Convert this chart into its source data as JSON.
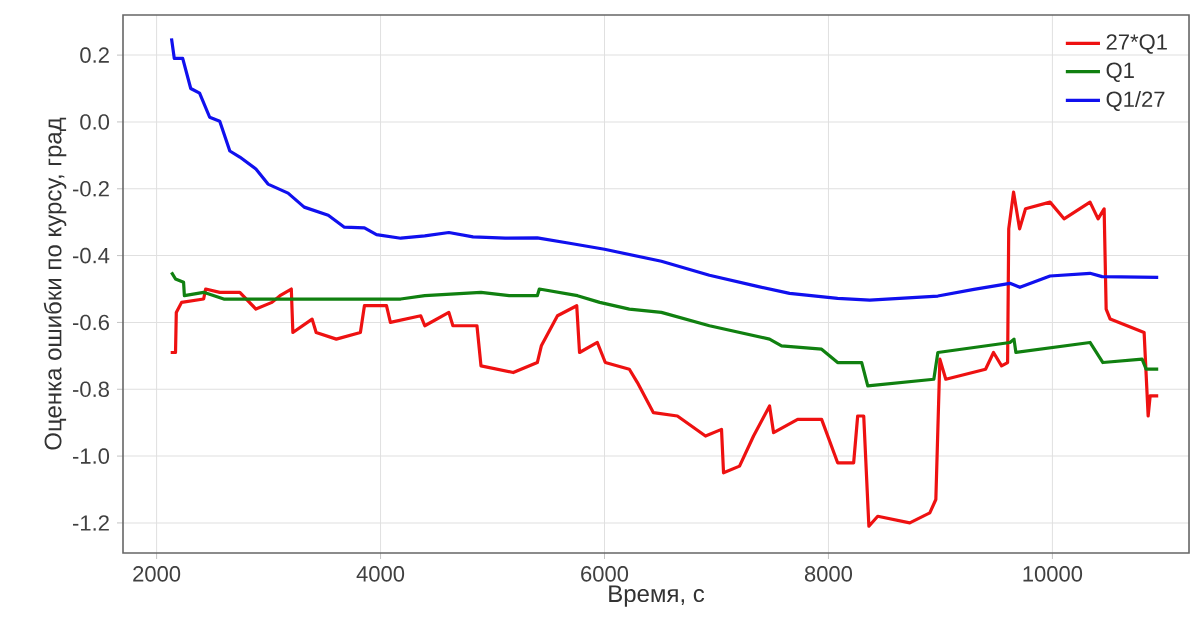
{
  "chart_data": {
    "type": "line",
    "xlabel": "Время, с",
    "ylabel": "Оценка ошибки по курсу, град",
    "xlim": [
      1700,
      11220
    ],
    "ylim": [
      -1.29,
      0.32
    ],
    "xticks": [
      2000,
      4000,
      6000,
      8000,
      10000
    ],
    "yticks": [
      0.2,
      {
        "value": 0,
        "label": "0.0"
      },
      -0.2,
      -0.4,
      -0.6,
      -0.8,
      {
        "value": -1,
        "label": "-1.0"
      },
      -1.2
    ],
    "grid": true,
    "legend": "top right",
    "line_style": "solid",
    "marker": "none",
    "series": [
      {
        "name": "27*Q1",
        "color": "#ee1111",
        "x": [
          2126,
          2169,
          2176,
          2223,
          2420,
          2438,
          2564,
          2743,
          2887,
          3030,
          3102,
          3203,
          3217,
          3389,
          3425,
          3605,
          3820,
          3856,
          4053,
          4088,
          4359,
          4395,
          4610,
          4646,
          4861,
          4897,
          5185,
          5400,
          5436,
          5580,
          5752,
          5777,
          5936,
          6007,
          6222,
          6294,
          6437,
          6651,
          6902,
          7045,
          7063,
          7206,
          7331,
          7474,
          7510,
          7725,
          7939,
          8082,
          8225,
          8261,
          8315,
          8361,
          8440,
          8726,
          8905,
          8959,
          8995,
          9048,
          9403,
          9474,
          9546,
          9600,
          9610,
          9653,
          9707,
          9760,
          9979,
          10104,
          10336,
          10408,
          10462,
          10480,
          10516,
          10819,
          10855,
          10873,
          10945
        ],
        "values": [
          -0.69,
          -0.69,
          -0.57,
          -0.54,
          -0.53,
          -0.5,
          -0.51,
          -0.51,
          -0.56,
          -0.54,
          -0.52,
          -0.5,
          -0.63,
          -0.59,
          -0.63,
          -0.65,
          -0.63,
          -0.55,
          -0.55,
          -0.6,
          -0.58,
          -0.61,
          -0.57,
          -0.61,
          -0.61,
          -0.73,
          -0.75,
          -0.72,
          -0.67,
          -0.58,
          -0.55,
          -0.69,
          -0.66,
          -0.72,
          -0.74,
          -0.78,
          -0.87,
          -0.88,
          -0.94,
          -0.92,
          -1.05,
          -1.03,
          -0.94,
          -0.85,
          -0.93,
          -0.89,
          -0.89,
          -1.02,
          -1.02,
          -0.88,
          -0.88,
          -1.21,
          -1.18,
          -1.2,
          -1.17,
          -1.13,
          -0.71,
          -0.77,
          -0.74,
          -0.69,
          -0.73,
          -0.72,
          -0.32,
          -0.21,
          -0.32,
          -0.26,
          -0.24,
          -0.29,
          -0.24,
          -0.29,
          -0.26,
          -0.56,
          -0.59,
          -0.63,
          -0.88,
          -0.82,
          -0.82
        ]
      },
      {
        "name": "Q1",
        "color": "#108010",
        "x": [
          2133,
          2169,
          2241,
          2248,
          2420,
          2600,
          2887,
          3174,
          3569,
          3999,
          4180,
          4395,
          4897,
          5149,
          5400,
          5418,
          5759,
          5957,
          6222,
          6508,
          6937,
          7474,
          7581,
          7939,
          8082,
          8297,
          8351,
          8941,
          8977,
          9621,
          9657,
          9674,
          10336,
          10451,
          10801,
          10837,
          10945
        ],
        "values": [
          -0.45,
          -0.47,
          -0.48,
          -0.52,
          -0.51,
          -0.53,
          -0.53,
          -0.53,
          -0.53,
          -0.53,
          -0.53,
          -0.52,
          -0.51,
          -0.52,
          -0.52,
          -0.5,
          -0.52,
          -0.54,
          -0.56,
          -0.57,
          -0.61,
          -0.65,
          -0.67,
          -0.68,
          -0.72,
          -0.72,
          -0.79,
          -0.77,
          -0.69,
          -0.66,
          -0.65,
          -0.69,
          -0.66,
          -0.72,
          -0.71,
          -0.74,
          -0.74
        ]
      },
      {
        "name": "Q1/27",
        "color": "#1010ee",
        "x": [
          2133,
          2158,
          2233,
          2305,
          2384,
          2474,
          2564,
          2654,
          2743,
          2887,
          2995,
          3174,
          3318,
          3533,
          3677,
          3856,
          3964,
          4180,
          4395,
          4610,
          4826,
          5113,
          5400,
          5688,
          6000,
          6508,
          6937,
          7366,
          7653,
          8082,
          8369,
          8977,
          9299,
          9621,
          9710,
          9979,
          10336,
          10444,
          10945
        ],
        "values": [
          0.25,
          0.19,
          0.19,
          0.1,
          0.086,
          0.014,
          0.002,
          -0.087,
          -0.105,
          -0.141,
          -0.186,
          -0.213,
          -0.255,
          -0.279,
          -0.315,
          -0.317,
          -0.337,
          -0.348,
          -0.341,
          -0.331,
          -0.344,
          -0.348,
          -0.347,
          -0.363,
          -0.381,
          -0.417,
          -0.459,
          -0.492,
          -0.513,
          -0.528,
          -0.533,
          -0.521,
          -0.501,
          -0.483,
          -0.495,
          -0.461,
          -0.453,
          -0.463,
          -0.465
        ]
      }
    ]
  }
}
